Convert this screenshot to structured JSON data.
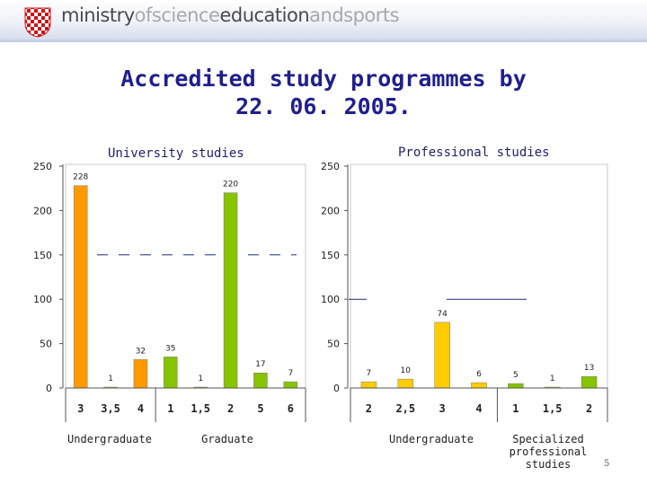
{
  "header": {
    "words": [
      {
        "text": "ministry",
        "tone": "dark"
      },
      {
        "text": "ofscience",
        "tone": "light"
      },
      {
        "text": "education",
        "tone": "dark"
      },
      {
        "text": "andsports",
        "tone": "light"
      }
    ]
  },
  "slide": {
    "title_line1": "Accredited study programmes by",
    "title_line2": "22. 06. 2005.",
    "page_number": "5"
  },
  "colors": {
    "orange": "#ff9900",
    "green": "#86c300",
    "yellow": "#ffcc00",
    "title": "#1f1f8f",
    "dashed_line": "#1f2f7f"
  },
  "chart_data": [
    {
      "type": "bar",
      "title": "University studies",
      "ylim": [
        0,
        250
      ],
      "yticks": [
        0,
        50,
        100,
        150,
        200,
        250
      ],
      "grid": false,
      "groups": [
        {
          "label": "Undergraduate",
          "categories": [
            "3",
            "3,5",
            "4"
          ],
          "values": [
            228,
            1,
            32
          ],
          "color": "orange"
        },
        {
          "label": "Graduate",
          "categories": [
            "1",
            "1,5",
            "2",
            "5",
            "6"
          ],
          "values": [
            35,
            1,
            220,
            17,
            7
          ],
          "color": "green"
        }
      ]
    },
    {
      "type": "bar",
      "title": "Professional studies",
      "ylim": [
        0,
        250
      ],
      "yticks": [
        0,
        50,
        100,
        150,
        200,
        250
      ],
      "grid": false,
      "groups": [
        {
          "label": "Undergraduate",
          "categories": [
            "2",
            "2,5",
            "3",
            "4"
          ],
          "values": [
            7,
            10,
            74,
            6
          ],
          "color": "yellow"
        },
        {
          "label": "Specialized professional studies",
          "label_lines": [
            "Specialized",
            "professional",
            "studies"
          ],
          "categories": [
            "1",
            "1,5",
            "2"
          ],
          "values": [
            5,
            1,
            13
          ],
          "color": "green"
        }
      ]
    }
  ]
}
